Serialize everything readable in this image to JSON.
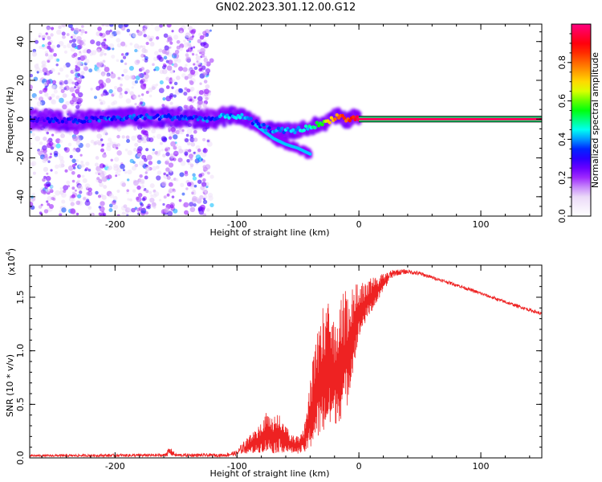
{
  "figure": {
    "title": "GN02.2023.301.12.00.G12"
  },
  "chart_data": [
    {
      "type": "heatmap",
      "title": "",
      "xlabel": "Height of straight line (km)",
      "ylabel": "Frequency (Hz)",
      "xlim": [
        -270,
        150
      ],
      "ylim": [
        -50,
        49
      ],
      "xticks": [
        -200,
        -100,
        0,
        100
      ],
      "yticks": [
        -40,
        -20,
        0,
        20,
        40
      ],
      "colorbar": {
        "label": "Normalized spectral amplitude",
        "range": [
          0,
          1
        ],
        "ticks": [
          0.0,
          0.2,
          0.4,
          0.6,
          0.8
        ],
        "colormap": "rainbow",
        "colors": [
          "#ffffff",
          "#e9d6f7",
          "#8c00ff",
          "#0000ff",
          "#00ffff",
          "#00ff00",
          "#ffff00",
          "#ff7f00",
          "#ff0000",
          "#ff0080"
        ]
      },
      "ridge": {
        "x": [
          -270,
          -240,
          -210,
          -180,
          -150,
          -120,
          -105,
          -95,
          -85,
          -75,
          -65,
          -55,
          -45,
          -35,
          -28,
          -20,
          -15,
          -10,
          -5,
          0,
          10,
          30,
          60,
          100,
          150
        ],
        "freq": [
          0,
          -1,
          0,
          1,
          1,
          0,
          2,
          1,
          -2,
          -5,
          -6,
          -6,
          -5,
          -3,
          -2,
          1,
          2,
          -1,
          1,
          0,
          0,
          0,
          0,
          0,
          0
        ],
        "amplitude": [
          0.3,
          0.3,
          0.35,
          0.35,
          0.35,
          0.35,
          0.4,
          0.4,
          0.35,
          0.35,
          0.4,
          0.4,
          0.45,
          0.5,
          0.6,
          0.75,
          0.8,
          0.85,
          0.85,
          0.9,
          0.95,
          1.0,
          1.0,
          1.0,
          1.0
        ]
      },
      "branch": {
        "x": [
          -85,
          -70,
          -60,
          -50,
          -40
        ],
        "freq": [
          -3,
          -10,
          -13,
          -15,
          -18
        ]
      },
      "grid": false
    },
    {
      "type": "line",
      "title": "",
      "xlabel": "Height of straight line (km)",
      "ylabel": "SNR (10 * v/v)",
      "multiplier": "(x10",
      "multiplier_exp": "4",
      "multiplier_close": ")",
      "xlim": [
        -270,
        150
      ],
      "ylim": [
        0,
        1.8
      ],
      "xticks": [
        -200,
        -100,
        0,
        100
      ],
      "yticks": [
        0.0,
        0.5,
        1.0,
        1.5
      ],
      "color": "#ee2222",
      "envelope": {
        "x": [
          -270,
          -160,
          -155,
          -150,
          -110,
          -100,
          -95,
          -85,
          -80,
          -75,
          -70,
          -65,
          -60,
          -55,
          -50,
          -45,
          -42,
          -40,
          -35,
          -30,
          -25,
          -20,
          -15,
          -10,
          -5,
          0,
          5,
          10,
          15,
          20,
          25,
          30,
          40,
          50,
          60,
          80,
          100,
          120,
          150
        ],
        "low": [
          0.01,
          0.01,
          0.02,
          0.01,
          0.01,
          0.02,
          0.04,
          0.04,
          0.05,
          0.05,
          0.04,
          0.05,
          0.05,
          0.04,
          0.04,
          0.04,
          0.06,
          0.08,
          0.15,
          0.2,
          0.25,
          0.3,
          0.35,
          0.45,
          0.8,
          1.1,
          1.25,
          1.35,
          1.45,
          1.55,
          1.65,
          1.7,
          1.72,
          1.7,
          1.67,
          1.6,
          1.52,
          1.44,
          1.33
        ],
        "high": [
          0.03,
          0.04,
          0.1,
          0.04,
          0.04,
          0.07,
          0.15,
          0.26,
          0.35,
          0.45,
          0.38,
          0.42,
          0.3,
          0.22,
          0.2,
          0.3,
          0.5,
          0.75,
          1.2,
          1.4,
          1.45,
          1.3,
          1.5,
          1.6,
          1.62,
          1.63,
          1.66,
          1.68,
          1.7,
          1.72,
          1.75,
          1.76,
          1.76,
          1.74,
          1.7,
          1.63,
          1.55,
          1.47,
          1.36
        ]
      },
      "grid": false
    }
  ]
}
